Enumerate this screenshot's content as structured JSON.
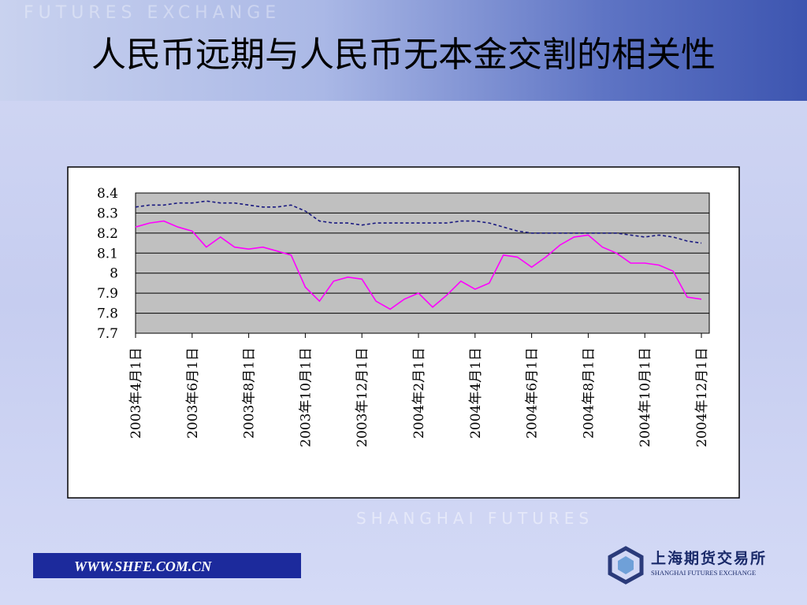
{
  "header_watermark": "FUTURES EXCHANGE",
  "footer_watermark": "SHANGHAI FUTURES",
  "footer": {
    "website": "WWW.SHFE.COM.CN",
    "logo_name": "上海期货交易所",
    "logo_name_en": "SHANGHAI FUTURES EXCHANGE"
  },
  "chart_data": {
    "type": "line",
    "title": "人民币远期与人民币无本金交割的相关性",
    "categories": [
      "2003年4月1日",
      null,
      null,
      null,
      "2003年6月1日",
      null,
      null,
      null,
      "2003年8月1日",
      null,
      null,
      null,
      "2003年10月1日",
      null,
      null,
      null,
      "2003年12月1日",
      null,
      null,
      null,
      "2004年2月1日",
      null,
      null,
      null,
      "2004年4月1日",
      null,
      null,
      null,
      "2004年6月1日",
      null,
      null,
      null,
      "2004年8月1日",
      null,
      null,
      null,
      "2004年10月1日",
      null,
      null,
      null,
      "2004年12月1日"
    ],
    "series": [
      {
        "color": "#1a1a80",
        "dashed": true,
        "values": [
          8.33,
          8.34,
          8.34,
          8.35,
          8.35,
          8.36,
          8.35,
          8.35,
          8.34,
          8.33,
          8.33,
          8.34,
          8.31,
          8.26,
          8.25,
          8.25,
          8.24,
          8.25,
          8.25,
          8.25,
          8.25,
          8.25,
          8.25,
          8.26,
          8.26,
          8.25,
          8.23,
          8.21,
          8.2,
          8.2,
          8.2,
          8.2,
          8.2,
          8.2,
          8.2,
          8.19,
          8.18,
          8.19,
          8.18,
          8.16,
          8.15
        ]
      },
      {
        "color": "#ff00ff",
        "dashed": false,
        "values": [
          8.23,
          8.25,
          8.26,
          8.23,
          8.21,
          8.13,
          8.18,
          8.13,
          8.12,
          8.13,
          8.11,
          8.09,
          7.93,
          7.86,
          7.96,
          7.98,
          7.97,
          7.86,
          7.82,
          7.87,
          7.9,
          7.83,
          7.89,
          7.96,
          7.92,
          7.95,
          8.09,
          8.08,
          8.03,
          8.08,
          8.14,
          8.18,
          8.19,
          8.13,
          8.1,
          8.05,
          8.05,
          8.04,
          8.01,
          7.88,
          7.87
        ]
      }
    ],
    "ylim": [
      7.7,
      8.4
    ],
    "yticks": [
      8.4,
      8.3,
      8.2,
      8.1,
      8,
      7.9,
      7.8,
      7.7
    ],
    "grid": true
  }
}
